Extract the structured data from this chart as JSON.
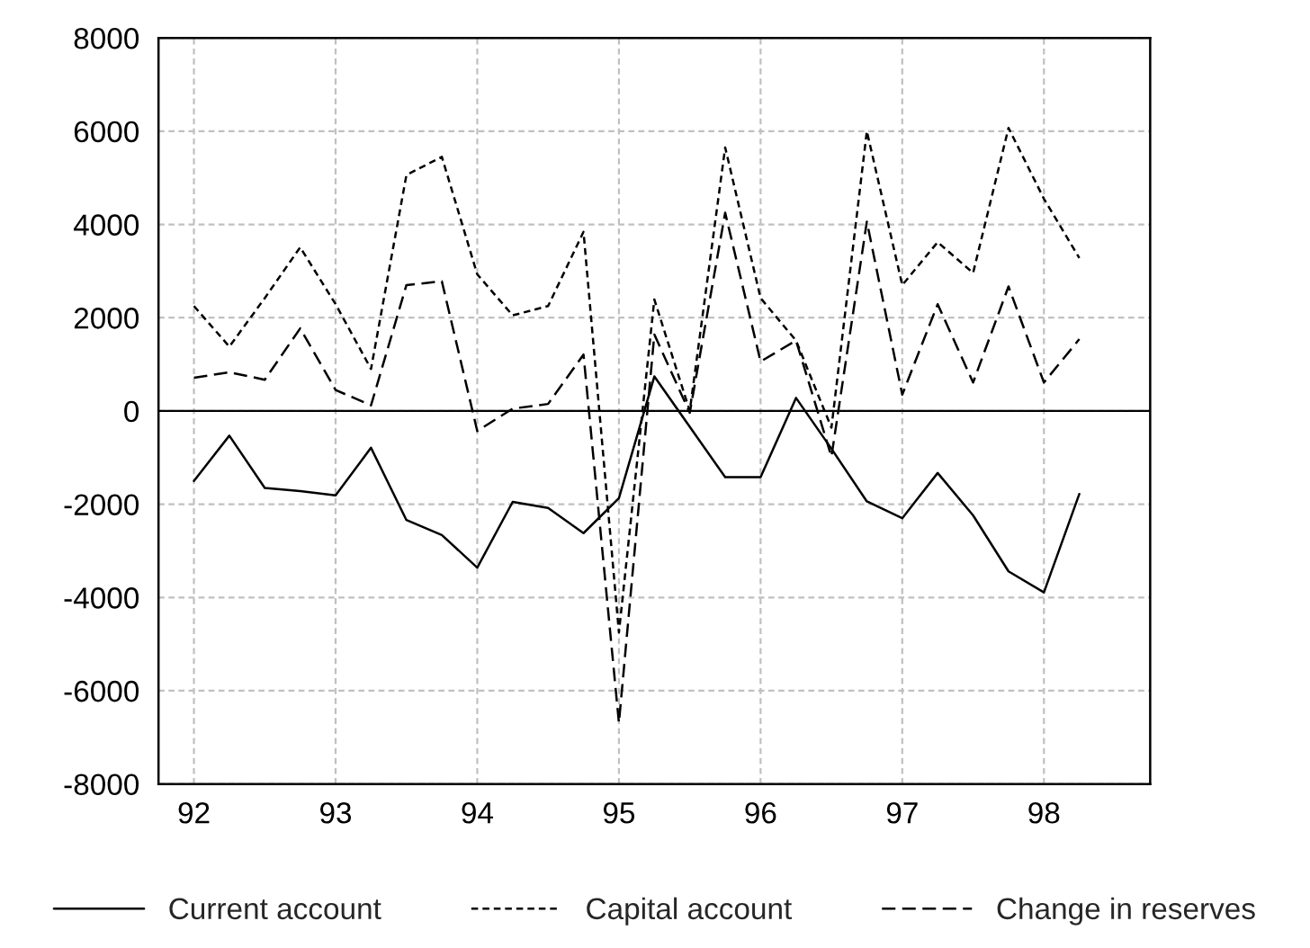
{
  "chart_data": {
    "type": "line",
    "x": [
      92,
      92.25,
      92.5,
      92.75,
      93,
      93.25,
      93.5,
      93.75,
      94,
      94.25,
      94.5,
      94.75,
      95,
      95.25,
      95.5,
      95.75,
      96,
      96.25,
      96.5,
      96.75,
      97,
      97.25,
      97.5,
      97.75,
      98,
      98.25
    ],
    "series": [
      {
        "name": "Current account",
        "color": "#000000",
        "line_style": "solid",
        "values": [
          -1500,
          -530,
          -1650,
          -1720,
          -1810,
          -790,
          -2340,
          -2660,
          -3360,
          -1950,
          -2080,
          -2620,
          -1870,
          740,
          -340,
          -1420,
          -1420,
          280,
          -810,
          -1940,
          -2300,
          -1330,
          -2240,
          -3440,
          -3890,
          -1780
        ]
      },
      {
        "name": "Capital account",
        "color": "#000000",
        "line_style": "dotted",
        "values": [
          2250,
          1380,
          2420,
          3510,
          2290,
          900,
          5060,
          5450,
          2930,
          2050,
          2250,
          3840,
          -4750,
          2390,
          0,
          5650,
          2420,
          1510,
          -360,
          6000,
          2700,
          3620,
          2960,
          6070,
          4550,
          3280
        ]
      },
      {
        "name": "Change in reserves",
        "color": "#000000",
        "line_style": "dashed",
        "values": [
          710,
          830,
          670,
          1770,
          450,
          120,
          2700,
          2780,
          -430,
          50,
          150,
          1210,
          -6690,
          1640,
          -40,
          4250,
          1060,
          1510,
          -980,
          4060,
          350,
          2290,
          610,
          2670,
          610,
          1540
        ]
      }
    ],
    "xlim": [
      91.75,
      98.75
    ],
    "xticks": [
      {
        "value": 92,
        "label": "92"
      },
      {
        "value": 93,
        "label": "93"
      },
      {
        "value": 94,
        "label": "94"
      },
      {
        "value": 95,
        "label": "95"
      },
      {
        "value": 96,
        "label": "96"
      },
      {
        "value": 97,
        "label": "97"
      },
      {
        "value": 98,
        "label": "98"
      }
    ],
    "ylim": [
      -8000,
      8000
    ],
    "yticks": [
      -8000,
      -6000,
      -4000,
      -2000,
      0,
      2000,
      4000,
      6000,
      8000
    ],
    "ref_lines": [
      {
        "axis": "y",
        "value": 0,
        "color": "#000000",
        "line_style": "solid"
      }
    ],
    "grid": true,
    "legend": "bottom"
  }
}
